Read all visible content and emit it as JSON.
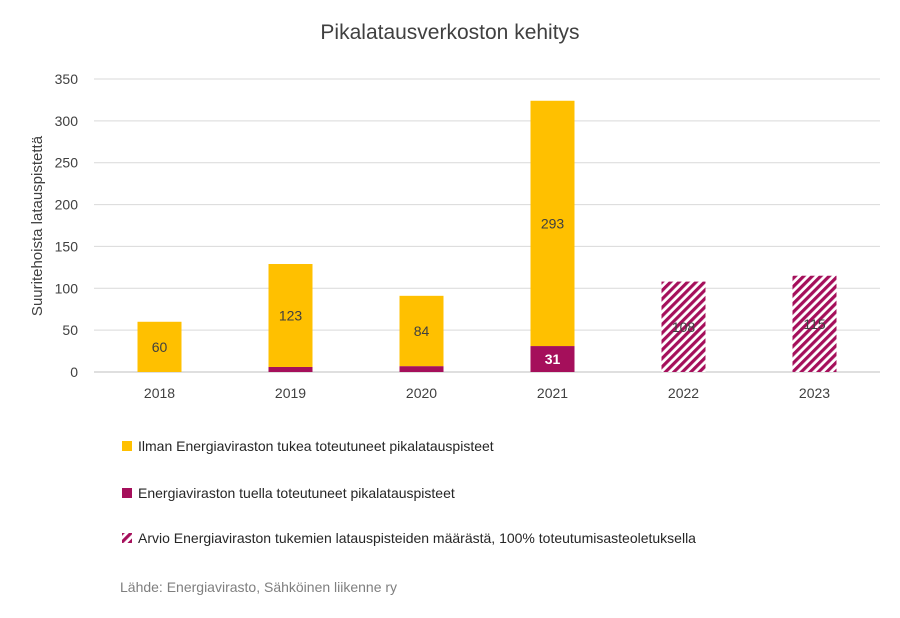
{
  "chart_data": {
    "type": "bar",
    "stacked": true,
    "title": "Pikalatausverkoston kehitys",
    "ylabel": "Suuritehoista latauspistettä",
    "xlabel": "",
    "ylim": [
      0,
      350
    ],
    "yticks": [
      0,
      50,
      100,
      150,
      200,
      250,
      300,
      350
    ],
    "grid": true,
    "legend_position": "bottom",
    "categories": [
      "2018",
      "2019",
      "2020",
      "2021",
      "2022",
      "2023"
    ],
    "series": [
      {
        "name": "Energiaviraston tuella toteutuneet pikalatauspisteet",
        "color": "#a50f5b",
        "values": [
          0,
          6,
          7,
          31,
          null,
          null
        ],
        "data_labels": [
          "",
          "",
          "",
          "31",
          "",
          ""
        ]
      },
      {
        "name": "Ilman Energiaviraston tukea toteutuneet pikalatauspisteet",
        "color": "#ffc000",
        "values": [
          60,
          123,
          84,
          293,
          null,
          null
        ],
        "data_labels": [
          "60",
          "123",
          "84",
          "293",
          "",
          ""
        ]
      },
      {
        "name": "Arvio Energiaviraston tukemien latauspisteiden määrästä, 100% toteutumisasteoletuksella",
        "color": "#a50f5b",
        "pattern": "diagonal-stripes",
        "values": [
          null,
          null,
          null,
          null,
          108,
          115
        ],
        "data_labels": [
          "",
          "",
          "",
          "",
          "108",
          "115"
        ]
      }
    ],
    "legend_order": [
      1,
      0,
      2
    ],
    "source": "Lähde: Energiavirasto, Sähköinen liikenne ry"
  }
}
